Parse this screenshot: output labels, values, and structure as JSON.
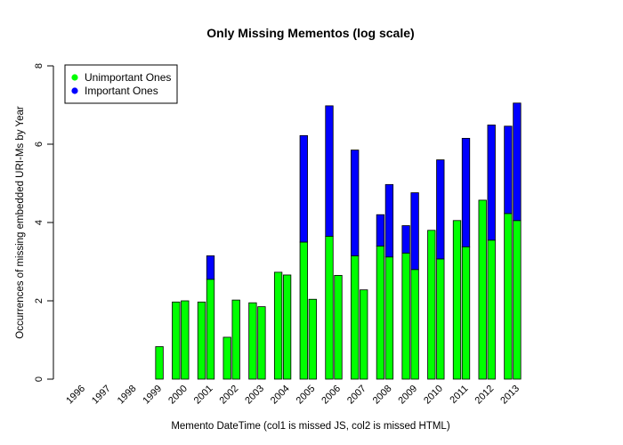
{
  "chart_data": {
    "type": "bar",
    "stacked": true,
    "title": "Only Missing Mementos (log scale)",
    "xlabel": "Memento DateTime (col1 is missed JS, col2 is missed HTML)",
    "ylabel": "Occurrences of missing embedded URI-Ms by Year",
    "ylim": [
      0,
      8
    ],
    "yticks": [
      0,
      2,
      4,
      6,
      8
    ],
    "legend_position": "top-left",
    "categories": [
      "1996",
      "1997",
      "1998",
      "1999",
      "2000",
      "2001",
      "2002",
      "2003",
      "2004",
      "2005",
      "2006",
      "2007",
      "2008",
      "2009",
      "2010",
      "2011",
      "2012",
      "2013"
    ],
    "columns_per_category": [
      "missed JS",
      "missed HTML"
    ],
    "series": [
      {
        "name": "Unimportant Ones",
        "color": "#00ff00",
        "col1": [
          0,
          0,
          0,
          0,
          1.97,
          1.97,
          1.07,
          1.95,
          2.73,
          3.5,
          3.65,
          3.15,
          3.4,
          3.22,
          3.8,
          4.05,
          4.57,
          4.23
        ],
        "col2": [
          0,
          0,
          0,
          0.83,
          2.0,
          2.55,
          2.02,
          1.85,
          2.66,
          2.04,
          2.65,
          2.28,
          3.12,
          2.8,
          3.07,
          3.38,
          3.55,
          4.05
        ]
      },
      {
        "name": "Important Ones",
        "color": "#0000ff",
        "col1": [
          0,
          0,
          0,
          0,
          0,
          0,
          0,
          0,
          0,
          2.72,
          3.33,
          2.7,
          0.8,
          0.7,
          0,
          0,
          0,
          2.23
        ],
        "col2": [
          0,
          0,
          0,
          0,
          0,
          0.6,
          0,
          0,
          0,
          0,
          0,
          0,
          1.85,
          1.96,
          2.53,
          2.77,
          2.94,
          3.0
        ]
      }
    ]
  }
}
